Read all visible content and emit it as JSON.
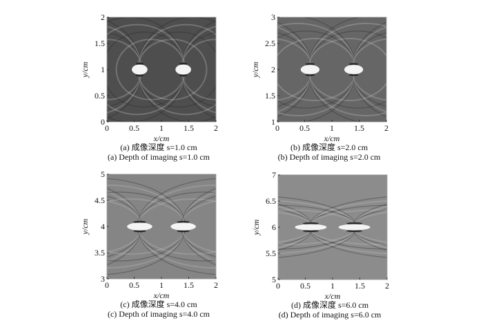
{
  "figure": {
    "panels": [
      {
        "id": "a",
        "caption_cn": "(a) 成像深度 s=1.0 cm",
        "caption_en": "(a) Depth of imaging s=1.0 cm",
        "xlabel": "x/cm",
        "ylabel": "y/cm",
        "xticks": [
          "0",
          "0.5",
          "1",
          "1.5",
          "2"
        ],
        "yticks": [
          "0",
          "0.5",
          "1",
          "1.5",
          "2"
        ],
        "xlim": [
          0,
          2
        ],
        "ylim": [
          0,
          2
        ],
        "depth_cm": 1.0,
        "targets_x_cm": [
          0.6,
          1.4
        ],
        "background": "#4e4e4e"
      },
      {
        "id": "b",
        "caption_cn": "(b) 成像深度 s=2.0 cm",
        "caption_en": "(b) Depth of imaging s=2.0 cm",
        "xlabel": "x/cm",
        "ylabel": "y/cm",
        "xticks": [
          "0",
          "0.5",
          "1",
          "1.5",
          "2"
        ],
        "yticks": [
          "1",
          "1.5",
          "2",
          "2.5",
          "3"
        ],
        "xlim": [
          0,
          2
        ],
        "ylim": [
          1,
          3
        ],
        "depth_cm": 2.0,
        "targets_x_cm": [
          0.6,
          1.4
        ],
        "background": "#666666"
      },
      {
        "id": "c",
        "caption_cn": "(c) 成像深度 s=4.0 cm",
        "caption_en": "(c) Depth of imaging s=4.0 cm",
        "xlabel": "x/cm",
        "ylabel": "y/cm",
        "xticks": [
          "0",
          "0.5",
          "1",
          "1.5",
          "2"
        ],
        "yticks": [
          "3",
          "3.5",
          "4",
          "4.5",
          "5"
        ],
        "xlim": [
          0,
          2
        ],
        "ylim": [
          3,
          5
        ],
        "depth_cm": 4.0,
        "targets_x_cm": [
          0.6,
          1.4
        ],
        "background": "#858585"
      },
      {
        "id": "d",
        "caption_cn": "(d) 成像深度 s=6.0 cm",
        "caption_en": "(d) Depth of imaging s=6.0 cm",
        "xlabel": "x/cm",
        "ylabel": "y/cm",
        "xticks": [
          "0",
          "0.5",
          "1",
          "1.5",
          "2"
        ],
        "yticks": [
          "5",
          "5.5",
          "6",
          "6.5",
          "7"
        ],
        "xlim": [
          0,
          2
        ],
        "ylim": [
          5,
          7
        ],
        "depth_cm": 6.0,
        "targets_x_cm": [
          0.6,
          1.4
        ],
        "background": "#8c8c8c"
      }
    ]
  }
}
